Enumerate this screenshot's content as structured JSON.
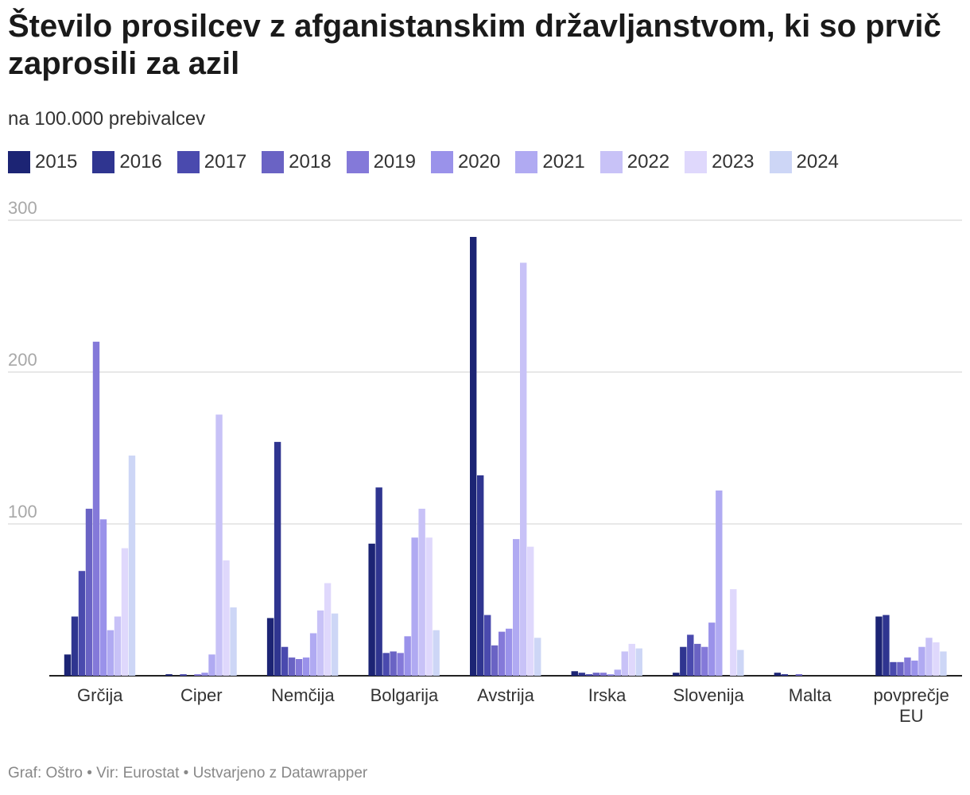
{
  "title": "Število prosilcev z afganistanskim državljanstvom, ki so prvič zaprosili za azil",
  "subtitle": "na 100.000 prebivalcev",
  "footer": "Graf: Oštro • Vir: Eurostat • Ustvarjeno z Datawrapper",
  "colors": [
    "#1c2474",
    "#2f3590",
    "#4a4aae",
    "#6a63c4",
    "#8479d9",
    "#9a92ea",
    "#b0aaf2",
    "#c8c2f7",
    "#dfd8fc",
    "#cdd6f6"
  ],
  "chart_data": {
    "type": "bar",
    "categories": [
      "Grčija",
      "Ciper",
      "Nemčija",
      "Bolgarija",
      "Avstrija",
      "Irska",
      "Slovenija",
      "Malta",
      "povprečje EU"
    ],
    "series": [
      {
        "name": "2015",
        "values": [
          14,
          1,
          38,
          87,
          289,
          3,
          2,
          2,
          39
        ]
      },
      {
        "name": "2016",
        "values": [
          39,
          0,
          154,
          124,
          132,
          2,
          19,
          1,
          40
        ]
      },
      {
        "name": "2017",
        "values": [
          69,
          1,
          19,
          15,
          40,
          1,
          27,
          0,
          9
        ]
      },
      {
        "name": "2018",
        "values": [
          110,
          0,
          12,
          16,
          20,
          2,
          21,
          1,
          9
        ]
      },
      {
        "name": "2019",
        "values": [
          220,
          1,
          11,
          15,
          29,
          2,
          19,
          0,
          12
        ]
      },
      {
        "name": "2020",
        "values": [
          103,
          2,
          12,
          26,
          31,
          1,
          35,
          0,
          10
        ]
      },
      {
        "name": "2021",
        "values": [
          30,
          14,
          28,
          91,
          90,
          4,
          122,
          0,
          19
        ]
      },
      {
        "name": "2022",
        "values": [
          39,
          172,
          43,
          110,
          272,
          16,
          0,
          0,
          25
        ]
      },
      {
        "name": "2023",
        "values": [
          84,
          76,
          61,
          91,
          85,
          21,
          57,
          0,
          22
        ]
      },
      {
        "name": "2024",
        "values": [
          145,
          45,
          41,
          30,
          25,
          18,
          17,
          0,
          16
        ]
      }
    ],
    "xlabel": "",
    "ylabel": "",
    "ylim": [
      0,
      300
    ],
    "yticks": [
      "100",
      "200",
      "300"
    ],
    "grid": true,
    "legend_position": "top"
  }
}
